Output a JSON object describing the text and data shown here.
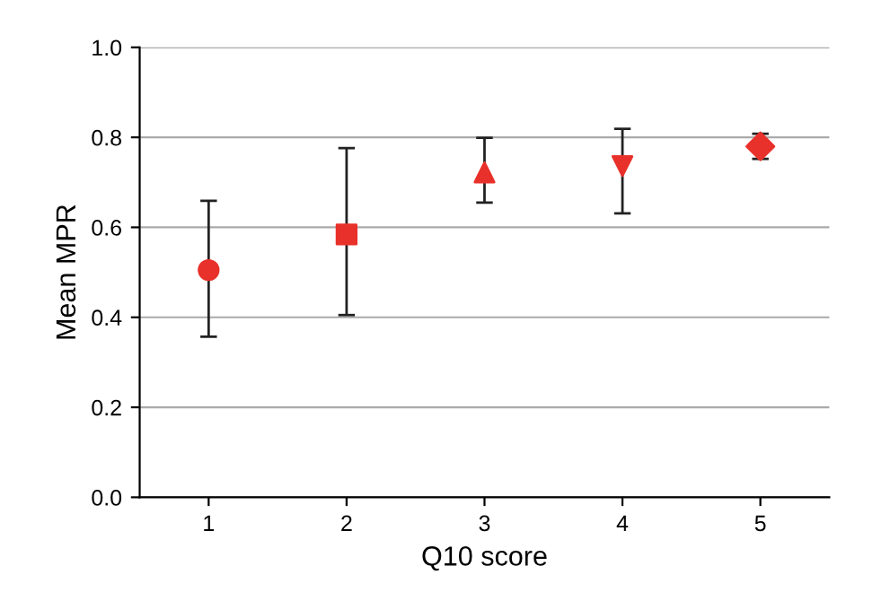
{
  "chart_data": {
    "type": "scatter",
    "xlabel": "Q10 score",
    "ylabel": "Mean MPR",
    "series": [
      {
        "color": "#e8312a",
        "marker": "circle",
        "x": [
          1
        ],
        "values": [
          0.505
        ],
        "errors": [
          [
            0.357,
            0.659
          ]
        ]
      },
      {
        "color": "#e8312a",
        "marker": "square",
        "x": [
          2
        ],
        "values": [
          0.584
        ],
        "errors": [
          [
            0.405,
            0.776
          ]
        ]
      },
      {
        "color": "#e8312a",
        "marker": "triangle",
        "x": [
          3
        ],
        "values": [
          0.722
        ],
        "errors": [
          [
            0.655,
            0.799
          ]
        ]
      },
      {
        "color": "#e8312a",
        "marker": "triangle_down",
        "x": [
          4
        ],
        "values": [
          0.736
        ],
        "errors": [
          [
            0.631,
            0.819
          ]
        ]
      },
      {
        "color": "#e8312a",
        "marker": "diamond",
        "x": [
          5
        ],
        "values": [
          0.78
        ],
        "errors": [
          [
            0.752,
            0.808
          ]
        ]
      }
    ],
    "xlim": [
      0.5,
      5.5
    ],
    "xticks": [
      1,
      2,
      3,
      4,
      5
    ],
    "ylim": [
      0,
      1
    ],
    "yticks": [
      {
        "value": 0,
        "label": "0.0"
      },
      0.2,
      0.4,
      0.6,
      0.8,
      {
        "value": 1,
        "label": "1.0"
      }
    ],
    "grid": "y"
  }
}
